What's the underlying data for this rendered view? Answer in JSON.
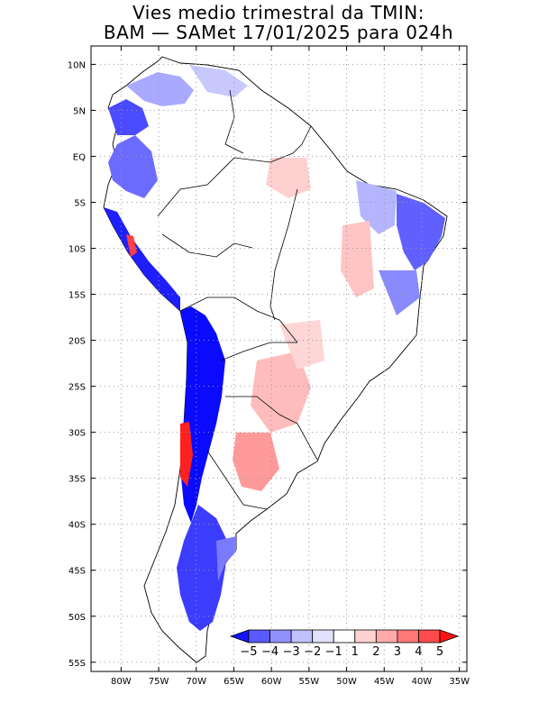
{
  "title": {
    "line1": "Vies medio trimestral da TMIN:",
    "line2": "BAM — SAMet 17/01/2025  para 024h"
  },
  "map": {
    "lon_range": [
      -84,
      -34
    ],
    "lat_range": [
      -56,
      12
    ],
    "lon_ticks": [
      {
        "value": -80,
        "label": "80W"
      },
      {
        "value": -75,
        "label": "75W"
      },
      {
        "value": -70,
        "label": "70W"
      },
      {
        "value": -65,
        "label": "65W"
      },
      {
        "value": -60,
        "label": "60W"
      },
      {
        "value": -55,
        "label": "55W"
      },
      {
        "value": -50,
        "label": "50W"
      },
      {
        "value": -45,
        "label": "45W"
      },
      {
        "value": -40,
        "label": "40W"
      },
      {
        "value": -35,
        "label": "35W"
      }
    ],
    "lat_ticks": [
      {
        "value": 10,
        "label": "10N"
      },
      {
        "value": 5,
        "label": "5N"
      },
      {
        "value": 0,
        "label": "EQ"
      },
      {
        "value": -5,
        "label": "5S"
      },
      {
        "value": -10,
        "label": "10S"
      },
      {
        "value": -15,
        "label": "15S"
      },
      {
        "value": -20,
        "label": "20S"
      },
      {
        "value": -25,
        "label": "25S"
      },
      {
        "value": -30,
        "label": "30S"
      },
      {
        "value": -35,
        "label": "35S"
      },
      {
        "value": -40,
        "label": "40S"
      },
      {
        "value": -45,
        "label": "45S"
      },
      {
        "value": -50,
        "label": "50S"
      },
      {
        "value": -55,
        "label": "55S"
      }
    ]
  },
  "colorbar": {
    "labels": [
      "−5",
      "−4",
      "−3",
      "−2",
      "−1",
      "1",
      "2",
      "3",
      "4",
      "5"
    ],
    "colors": [
      "#1414ff",
      "#5a5aff",
      "#9191ff",
      "#c0c0ff",
      "#e1e1ff",
      "#ffffff",
      "#ffd2d2",
      "#ffaaaa",
      "#ff7878",
      "#ff4b4b",
      "#ff1414"
    ]
  }
}
